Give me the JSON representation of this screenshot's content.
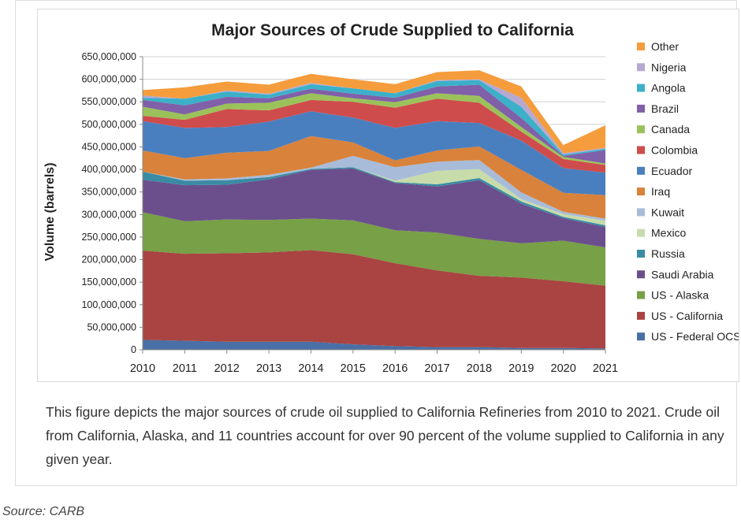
{
  "caption": "This figure depicts the major sources of crude oil supplied to California Refineries from 2010 to 2021. Crude oil from California, Alaska, and 11 countries account for over 90 percent of the volume supplied to California in any given year.",
  "source": "Source: CARB",
  "chart_data": {
    "type": "area",
    "stacked": true,
    "title": "Major Sources of Crude Supplied to California",
    "xlabel": "",
    "ylabel": "Volume (barrels)",
    "x": [
      "2010",
      "2011",
      "2012",
      "2013",
      "2014",
      "2015",
      "2016",
      "2017",
      "2018",
      "2019",
      "2020",
      "2021"
    ],
    "ylim": [
      0,
      650000000
    ],
    "yticks": [
      0,
      50000000,
      100000000,
      150000000,
      200000000,
      250000000,
      300000000,
      350000000,
      400000000,
      450000000,
      500000000,
      550000000,
      600000000,
      650000000
    ],
    "ytick_labels": [
      "0",
      "50,000,000",
      "100,000,000",
      "150,000,000",
      "200,000,000",
      "250,000,000",
      "300,000,000",
      "350,000,000",
      "400,000,000",
      "450,000,000",
      "500,000,000",
      "550,000,000",
      "600,000,000",
      "650,000,000"
    ],
    "grid": true,
    "legend_position": "right",
    "series": [
      {
        "name": "US - Federal OCS",
        "color": "#4a6fa5",
        "values": [
          22000000,
          20000000,
          18000000,
          18000000,
          18000000,
          12000000,
          8000000,
          6000000,
          6000000,
          4000000,
          4000000,
          3000000
        ]
      },
      {
        "name": "US - California",
        "color": "#a94442",
        "values": [
          198000000,
          193000000,
          196000000,
          198000000,
          203000000,
          200000000,
          184000000,
          170000000,
          158000000,
          156000000,
          148000000,
          139000000
        ]
      },
      {
        "name": "US - Alaska",
        "color": "#78a046",
        "values": [
          85000000,
          72000000,
          75000000,
          72000000,
          70000000,
          75000000,
          73000000,
          84000000,
          82000000,
          76000000,
          90000000,
          85000000
        ]
      },
      {
        "name": "Saudi Arabia",
        "color": "#6b4f8c",
        "values": [
          72000000,
          80000000,
          77000000,
          90000000,
          108000000,
          115000000,
          105000000,
          102000000,
          130000000,
          88000000,
          50000000,
          45000000
        ]
      },
      {
        "name": "Russia",
        "color": "#3a8ba3",
        "values": [
          18000000,
          10000000,
          10000000,
          5000000,
          2000000,
          3000000,
          2000000,
          5000000,
          5000000,
          5000000,
          3000000,
          4000000
        ]
      },
      {
        "name": "Mexico",
        "color": "#c7dcaa",
        "values": [
          0,
          0,
          0,
          0,
          0,
          0,
          3000000,
          30000000,
          20000000,
          5000000,
          6000000,
          10000000
        ]
      },
      {
        "name": "Kuwait",
        "color": "#a8bcd9",
        "values": [
          0,
          3000000,
          4000000,
          5000000,
          3000000,
          25000000,
          30000000,
          20000000,
          20000000,
          15000000,
          5000000,
          5000000
        ]
      },
      {
        "name": "Iraq",
        "color": "#d9823b",
        "values": [
          47000000,
          47000000,
          57000000,
          53000000,
          70000000,
          30000000,
          15000000,
          25000000,
          30000000,
          50000000,
          42000000,
          52000000
        ]
      },
      {
        "name": "Ecuador",
        "color": "#4a7fbf",
        "values": [
          65000000,
          67000000,
          57000000,
          65000000,
          55000000,
          55000000,
          72000000,
          65000000,
          52000000,
          65000000,
          55000000,
          50000000
        ]
      },
      {
        "name": "Colombia",
        "color": "#cf4c4c",
        "values": [
          12000000,
          18000000,
          40000000,
          25000000,
          25000000,
          35000000,
          45000000,
          50000000,
          45000000,
          20000000,
          20000000,
          17000000
        ]
      },
      {
        "name": "Canada",
        "color": "#9bc25a",
        "values": [
          20000000,
          12000000,
          12000000,
          17000000,
          15000000,
          8000000,
          12000000,
          12000000,
          15000000,
          10000000,
          5000000,
          3000000
        ]
      },
      {
        "name": "Brazil",
        "color": "#8060a8",
        "values": [
          15000000,
          20000000,
          15000000,
          10000000,
          10000000,
          10000000,
          10000000,
          15000000,
          25000000,
          20000000,
          2000000,
          30000000
        ]
      },
      {
        "name": "Angola",
        "color": "#3cb0c9",
        "values": [
          5000000,
          15000000,
          12000000,
          8000000,
          10000000,
          12000000,
          10000000,
          12000000,
          10000000,
          25000000,
          3000000,
          3000000
        ]
      },
      {
        "name": "Nigeria",
        "color": "#b7a8d1",
        "values": [
          5000000,
          0,
          2000000,
          2000000,
          3000000,
          0,
          0,
          2000000,
          2000000,
          20000000,
          3000000,
          2000000
        ]
      },
      {
        "name": "Other",
        "color": "#f59c3c",
        "values": [
          12000000,
          25000000,
          20000000,
          20000000,
          20000000,
          20000000,
          20000000,
          18000000,
          20000000,
          25000000,
          18000000,
          50000000
        ]
      }
    ]
  }
}
